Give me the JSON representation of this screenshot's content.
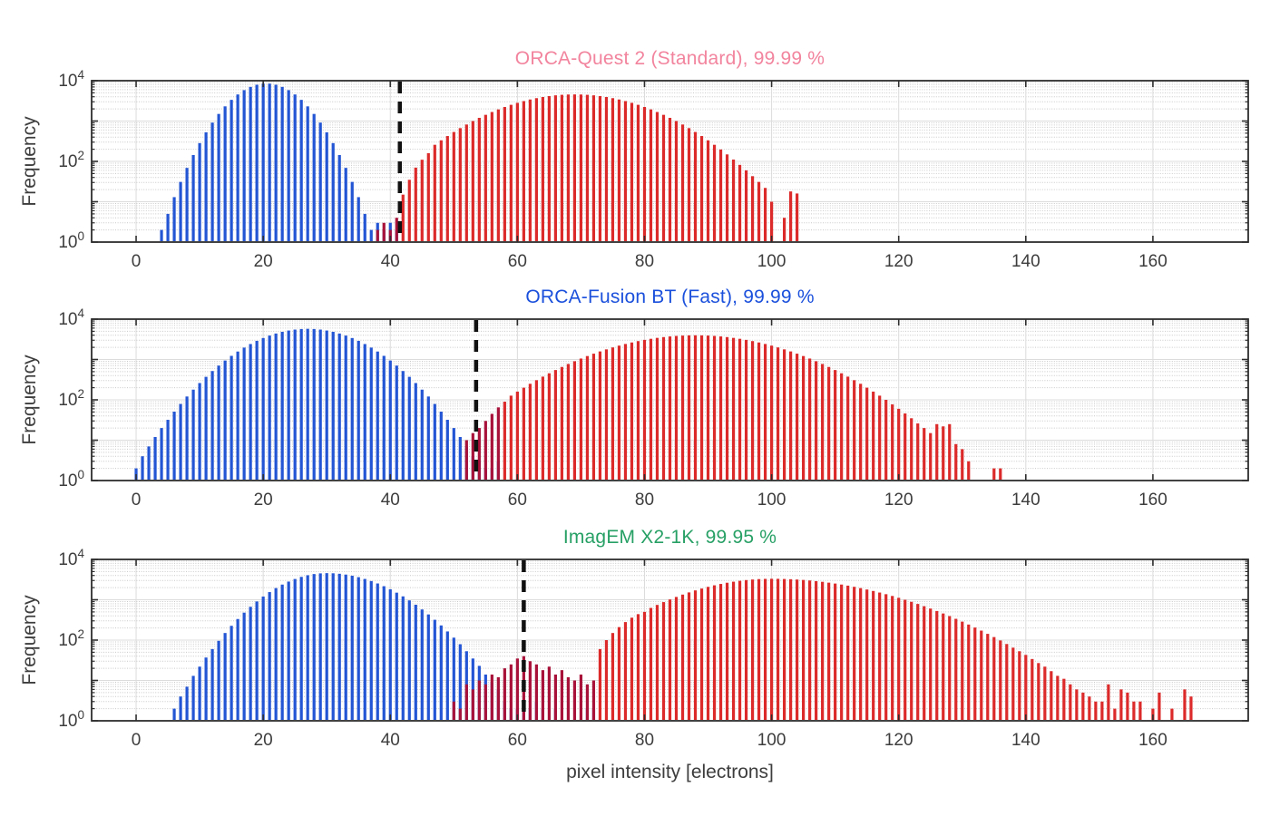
{
  "figure": {
    "xlabel": "pixel intensity [electrons]",
    "ylabel": "Frequency",
    "x_ticks": [
      0,
      20,
      40,
      60,
      80,
      100,
      120,
      140,
      160
    ],
    "y_tick_exponents": [
      0,
      2,
      4
    ],
    "y_exp_range": [
      0,
      4
    ],
    "xlim": [
      -7,
      175
    ],
    "grid": "on",
    "grid_minor": "on",
    "colors": {
      "blue_bar": "#2355d4",
      "red_bar": "#dc2a2a",
      "overlap_bar": "#a8123a",
      "threshold_line": "#111111",
      "grid_major": "#dcdcdc",
      "grid_minor": "#c9c9c9",
      "axis_frame": "#2e2e2e",
      "tick_text": "#3d3d3d",
      "background": "#ffffff"
    }
  },
  "chart_data": [
    {
      "type": "bar",
      "scale": "log",
      "title": "ORCA-Quest 2 (Standard), 99.99 %",
      "title_color": "#f2849e",
      "camera": "ORCA-Quest 2 (Standard)",
      "separation_percent": "99.99 %",
      "threshold_x": 41.5,
      "overlap_red_until": 41,
      "blue": {
        "start": 4,
        "values": [
          2,
          5,
          13,
          31,
          69,
          144,
          284,
          526,
          916,
          1500,
          2312,
          3350,
          4560,
          5834,
          7020,
          7943,
          8446,
          8446,
          7943,
          7020,
          5834,
          4560,
          3350,
          2312,
          1500,
          916,
          526,
          284,
          144,
          69,
          31,
          13,
          5,
          2
        ],
        "extra": [
          [
            38,
            3
          ],
          [
            39,
            2
          ],
          [
            40,
            3
          ],
          [
            41,
            2
          ]
        ]
      },
      "red": {
        "start": 42,
        "values": [
          15,
          35,
          70,
          110,
          160,
          258,
          333,
          425,
          536,
          667,
          821,
          999,
          1200,
          1426,
          1675,
          1942,
          2228,
          2524,
          2825,
          3126,
          3420,
          3690,
          3941,
          4157,
          4335,
          4467,
          4545,
          4571,
          4545,
          4467,
          4335,
          4157,
          3941,
          3690,
          3420,
          3126,
          2825,
          2524,
          2228,
          1942,
          1675,
          1426,
          1200,
          999,
          821,
          667,
          536,
          425,
          333,
          258,
          197,
          149,
          111,
          82,
          60,
          43,
          31,
          22,
          10
        ],
        "extra": [
          [
            38,
            2
          ],
          [
            39,
            3
          ],
          [
            40,
            2
          ],
          [
            41,
            4
          ],
          [
            102,
            4
          ],
          [
            103,
            18
          ],
          [
            104,
            16
          ]
        ]
      }
    },
    {
      "type": "bar",
      "scale": "log",
      "title": "ORCA-Fusion BT (Fast), 99.99 %",
      "title_color": "#1b50dc",
      "camera": "ORCA-Fusion BT (Fast)",
      "separation_percent": "99.99 %",
      "threshold_x": 53.5,
      "overlap_red_until": 57,
      "blue": {
        "start": 0,
        "values": [
          2,
          4,
          7,
          12,
          20,
          32,
          51,
          79,
          121,
          179,
          261,
          372,
          518,
          706,
          942,
          1231,
          1574,
          1972,
          2417,
          2898,
          3404,
          3917,
          4406,
          4849,
          5224,
          5512,
          5690,
          5754,
          5690,
          5512,
          5224,
          4849,
          4406,
          3917,
          3404,
          2898,
          2417,
          1972,
          1574,
          1231,
          942,
          706,
          518,
          372,
          261,
          179,
          121,
          79,
          51,
          32,
          20,
          12,
          7,
          4,
          3,
          2,
          2,
          3
        ],
        "extra": []
      },
      "red": {
        "start": 52,
        "values": [
          10,
          15,
          20,
          30,
          45,
          65,
          90,
          127,
          160,
          200,
          250,
          307,
          376,
          455,
          548,
          653,
          773,
          906,
          1055,
          1218,
          1394,
          1584,
          1782,
          1991,
          2206,
          2426,
          2642,
          2857,
          3062,
          3258,
          3434,
          3594,
          3730,
          3837,
          3917,
          3963,
          3981,
          3963,
          3917,
          3837,
          3730,
          3594,
          3434,
          3258,
          3062,
          2857,
          2642,
          2426,
          2206,
          1991,
          1782,
          1584,
          1394,
          1218,
          1055,
          906,
          773,
          653,
          548,
          455,
          376,
          307,
          250,
          200,
          160,
          127,
          100,
          77,
          60,
          46,
          35,
          26,
          20,
          15,
          25,
          22,
          25,
          8,
          6,
          3
        ],
        "extra": [
          [
            135,
            2
          ],
          [
            136,
            2
          ]
        ]
      }
    },
    {
      "type": "bar",
      "scale": "log",
      "title": "ImagEM X2-1K, 99.95 %",
      "title_color": "#27a065",
      "camera": "ImagEM X2-1K",
      "separation_percent": "99.95 %",
      "threshold_x": 61,
      "overlap_red_until": 72,
      "blue": {
        "start": 6,
        "values": [
          2,
          4,
          7,
          13,
          22,
          37,
          60,
          96,
          150,
          226,
          333,
          479,
          668,
          908,
          1202,
          1549,
          1945,
          2377,
          2825,
          3273,
          3690,
          4055,
          4335,
          4509,
          4571,
          4529,
          4406,
          4207,
          3945,
          3631,
          3281,
          2911,
          2535,
          2168,
          1820,
          1500,
          1213,
          964,
          752,
          575,
          433,
          319,
          231,
          164,
          115,
          79,
          53,
          35,
          23,
          14,
          9,
          6,
          3,
          2,
          2,
          3,
          2
        ],
        "extra": [
          [
            63,
            3
          ],
          [
            64,
            2
          ],
          [
            66,
            2
          ],
          [
            71,
            2
          ],
          [
            72,
            2
          ]
        ]
      },
      "red": {
        "start": 50,
        "values": [
          3,
          2,
          8,
          6,
          10,
          8,
          14,
          12,
          20,
          25,
          35,
          40,
          30,
          25,
          18,
          22,
          14,
          18,
          12,
          10,
          14,
          8,
          10,
          60,
          100,
          150,
          210,
          280,
          360,
          440,
          501,
          628,
          745,
          875,
          1018,
          1175,
          1343,
          1521,
          1706,
          1897,
          2089,
          2280,
          2466,
          2642,
          2805,
          2951,
          3076,
          3177,
          3251,
          3296,
          3311,
          3303,
          3273,
          3228,
          3170,
          3097,
          3006,
          2897,
          2786,
          2655,
          2523,
          2382,
          2239,
          2094,
          1945,
          1795,
          1652,
          1510,
          1374,
          1242,
          1117,
          999,
          889,
          787,
          692,
          605,
          527,
          457,
          394,
          337,
          287,
          243,
          205,
          172,
          143,
          119,
          98,
          80,
          65,
          53,
          43,
          34,
          27,
          22,
          17,
          13,
          11,
          8,
          6,
          5,
          4,
          3,
          3,
          8,
          2,
          6,
          5,
          3,
          3
        ],
        "extra": [
          [
            160,
            2
          ],
          [
            161,
            5
          ],
          [
            163,
            2
          ],
          [
            165,
            6
          ],
          [
            166,
            4
          ]
        ]
      }
    }
  ]
}
